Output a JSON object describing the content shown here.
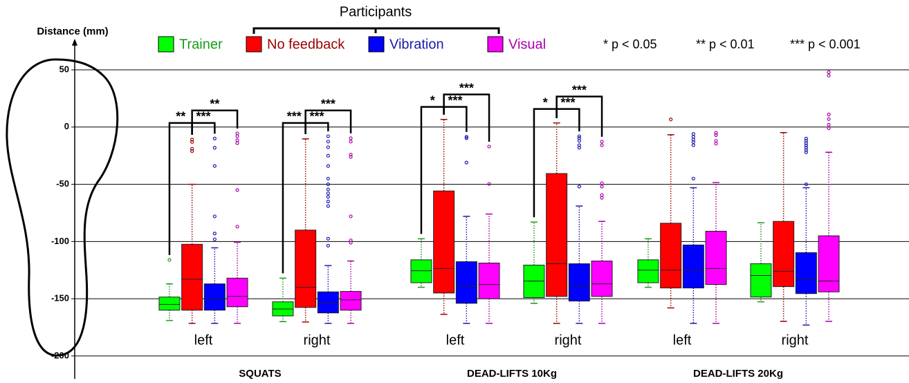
{
  "chart_data": {
    "type": "boxplot",
    "ylabel": "Distance (mm)",
    "legend_title": "Participants",
    "ylim": [
      -220,
      76
    ],
    "yticks": [
      50,
      0,
      -50,
      -100,
      -150,
      -200
    ],
    "grid": true,
    "categories": [
      "left",
      "right",
      "left",
      "right",
      "left",
      "right"
    ],
    "groups": [
      "SQUATS",
      "DEAD-LIFTS 10Kg",
      "DEAD-LIFTS 20Kg"
    ],
    "significance_legend": [
      "* p < 0.05",
      "** p < 0.01",
      "*** p < 0.001"
    ],
    "series": [
      {
        "name": "Trainer",
        "color": "#00ff00",
        "dark_color": "#1a9a1a",
        "values": [
          {
            "whislo": -169,
            "q1": -160,
            "median": -155,
            "q3": -148.5,
            "whishi": -137,
            "fliers": [
              -116
            ]
          },
          {
            "whislo": -170,
            "q1": -165,
            "median": -159,
            "q3": -152.7,
            "whishi": -132,
            "fliers": []
          },
          {
            "whislo": -140,
            "q1": -136,
            "median": -125.5,
            "q3": -116,
            "whishi": -97.6,
            "fliers": []
          },
          {
            "whislo": -154,
            "q1": -149,
            "median": -134.5,
            "q3": -120.6,
            "whishi": -83,
            "fliers": []
          },
          {
            "whislo": -140,
            "q1": -136,
            "median": -125,
            "q3": -116,
            "whishi": -97.6,
            "fliers": []
          },
          {
            "whislo": -152.7,
            "q1": -148.5,
            "median": -129.7,
            "q3": -119.4,
            "whishi": -83.6,
            "fliers": []
          }
        ]
      },
      {
        "name": "No feedback",
        "color": "#ff0000",
        "dark_color": "#990000",
        "values": [
          {
            "whislo": -171.5,
            "q1": -160,
            "median": -133,
            "q3": -102.4,
            "whishi": -50,
            "fliers": [
              -11,
              -13,
              -19,
              -21
            ]
          },
          {
            "whislo": -170.3,
            "q1": -157.6,
            "median": -140,
            "q3": -90,
            "whishi": -10.3,
            "fliers": []
          },
          {
            "whislo": -163.6,
            "q1": -145,
            "median": -123.6,
            "q3": -55.8,
            "whishi": 6.7,
            "fliers": []
          },
          {
            "whislo": -171.5,
            "q1": -148,
            "median": -119.4,
            "q3": -40.6,
            "whishi": 3.6,
            "fliers": []
          },
          {
            "whislo": -158,
            "q1": -140.6,
            "median": -125,
            "q3": -84,
            "whishi": -6.7,
            "fliers": [
              6.7
            ]
          },
          {
            "whislo": -169.7,
            "q1": -139.4,
            "median": -126,
            "q3": -82.4,
            "whishi": -4.8,
            "fliers": []
          }
        ]
      },
      {
        "name": "Vibration",
        "color": "#0000ff",
        "dark_color": "#1a1aaa",
        "values": [
          {
            "whislo": -171.5,
            "q1": -160,
            "median": -150,
            "q3": -137,
            "whishi": -105.5,
            "fliers": [
              -10,
              -18,
              -34,
              -78,
              -93,
              -98
            ]
          },
          {
            "whislo": -171.5,
            "q1": -162.4,
            "median": -154,
            "q3": -144,
            "whishi": -121,
            "fliers": [
              -8,
              -12.7,
              -17.6,
              -25,
              -34,
              -45,
              -50,
              -54.5,
              -58,
              -61,
              -65,
              -69,
              -97.5,
              -103.6
            ]
          },
          {
            "whislo": -171.5,
            "q1": -154,
            "median": -139,
            "q3": -117.6,
            "whishi": -78,
            "fliers": [
              -8.5,
              -9.7,
              -31
            ]
          },
          {
            "whislo": -171.5,
            "q1": -152,
            "median": -139,
            "q3": -119.4,
            "whishi": -69,
            "fliers": [
              -8,
              -9.7,
              -12,
              -15.8,
              -18,
              -52
            ]
          },
          {
            "whislo": -171.5,
            "q1": -140.6,
            "median": -125,
            "q3": -103,
            "whishi": -53,
            "fliers": [
              -6,
              -8.5,
              -11,
              -13,
              -15.8,
              -45
            ]
          },
          {
            "whislo": -173,
            "q1": -145.5,
            "median": -133,
            "q3": -109.7,
            "whishi": -53,
            "fliers": [
              -10,
              -12,
              -14,
              -16,
              -18,
              -20,
              -22,
              -50
            ]
          }
        ]
      },
      {
        "name": "Visual",
        "color": "#ff00ff",
        "dark_color": "#aa00aa",
        "values": [
          {
            "whislo": -171.5,
            "q1": -157,
            "median": -148,
            "q3": -132,
            "whishi": -100.6,
            "fliers": [
              -5.5,
              -8,
              -11.5,
              -14,
              -55,
              -87
            ]
          },
          {
            "whislo": -171.5,
            "q1": -160,
            "median": -151,
            "q3": -143.6,
            "whishi": -117,
            "fliers": [
              -9.7,
              -12.7,
              -24,
              -26,
              -78,
              -99,
              -101
            ]
          },
          {
            "whislo": -171.5,
            "q1": -150,
            "median": -137.6,
            "q3": -118.8,
            "whishi": -76,
            "fliers": [
              -17,
              -49.7
            ]
          },
          {
            "whislo": -171.5,
            "q1": -148,
            "median": -137,
            "q3": -117,
            "whishi": -82.4,
            "fliers": [
              -12.7,
              -15.8,
              -49,
              -52,
              -59.4,
              -61.8
            ]
          },
          {
            "whislo": -171.5,
            "q1": -137.6,
            "median": -123.6,
            "q3": -91,
            "whishi": -48.5,
            "fliers": [
              -5,
              -7,
              -12,
              -14.5
            ]
          },
          {
            "whislo": -169.7,
            "q1": -144,
            "median": -134.5,
            "q3": -95,
            "whishi": -22,
            "fliers": [
              48,
              45,
              11,
              7,
              2,
              -1
            ]
          }
        ]
      }
    ],
    "brackets": [
      {
        "category": 0,
        "from": 0,
        "to": 1,
        "label": "**",
        "y": 3.6
      },
      {
        "category": 0,
        "from": 1,
        "to": 2,
        "label": "***",
        "y": 3.6
      },
      {
        "category": 0,
        "from": 1,
        "to": 3,
        "label": "**",
        "y": 14.5
      },
      {
        "category": 1,
        "from": 0,
        "to": 1,
        "label": "***",
        "y": 3.6
      },
      {
        "category": 1,
        "from": 1,
        "to": 2,
        "label": "***",
        "y": 3.6
      },
      {
        "category": 1,
        "from": 1,
        "to": 3,
        "label": "***",
        "y": 14.5
      },
      {
        "category": 2,
        "from": 0,
        "to": 1,
        "label": "*",
        "y": 17.6
      },
      {
        "category": 2,
        "from": 1,
        "to": 2,
        "label": "***",
        "y": 17.6
      },
      {
        "category": 2,
        "from": 1,
        "to": 3,
        "label": "***",
        "y": 28.5
      },
      {
        "category": 3,
        "from": 0,
        "to": 1,
        "label": "*",
        "y": 15.8
      },
      {
        "category": 3,
        "from": 1,
        "to": 2,
        "label": "***",
        "y": 15.8
      },
      {
        "category": 3,
        "from": 1,
        "to": 3,
        "label": "***",
        "y": 26.7
      }
    ]
  }
}
